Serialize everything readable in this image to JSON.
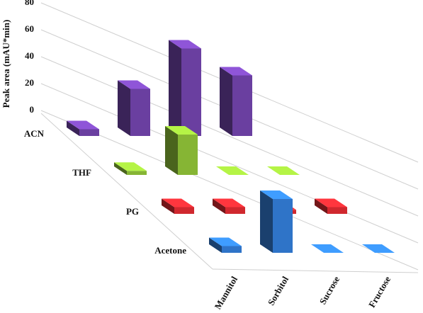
{
  "chart_data": {
    "type": "bar3d",
    "y_label": "Peak area (mAU*min)",
    "categories": [
      "Mannitol",
      "Sorbitol",
      "Sucrose",
      "Fructose"
    ],
    "series": [
      {
        "name": "ACN",
        "color": "#6a3fa0",
        "values": [
          5,
          35,
          65,
          45
        ]
      },
      {
        "name": "THF",
        "color": "#86b534",
        "values": [
          3,
          30,
          0,
          0
        ]
      },
      {
        "name": "PG",
        "color": "#d0282e",
        "values": [
          5,
          5,
          3,
          5
        ]
      },
      {
        "name": "Acetone",
        "color": "#2f74c8",
        "values": [
          5,
          40,
          0,
          0
        ]
      }
    ],
    "ylim": [
      0,
      80
    ],
    "yticks": [
      0,
      20,
      40,
      60,
      80
    ],
    "grid": true
  }
}
